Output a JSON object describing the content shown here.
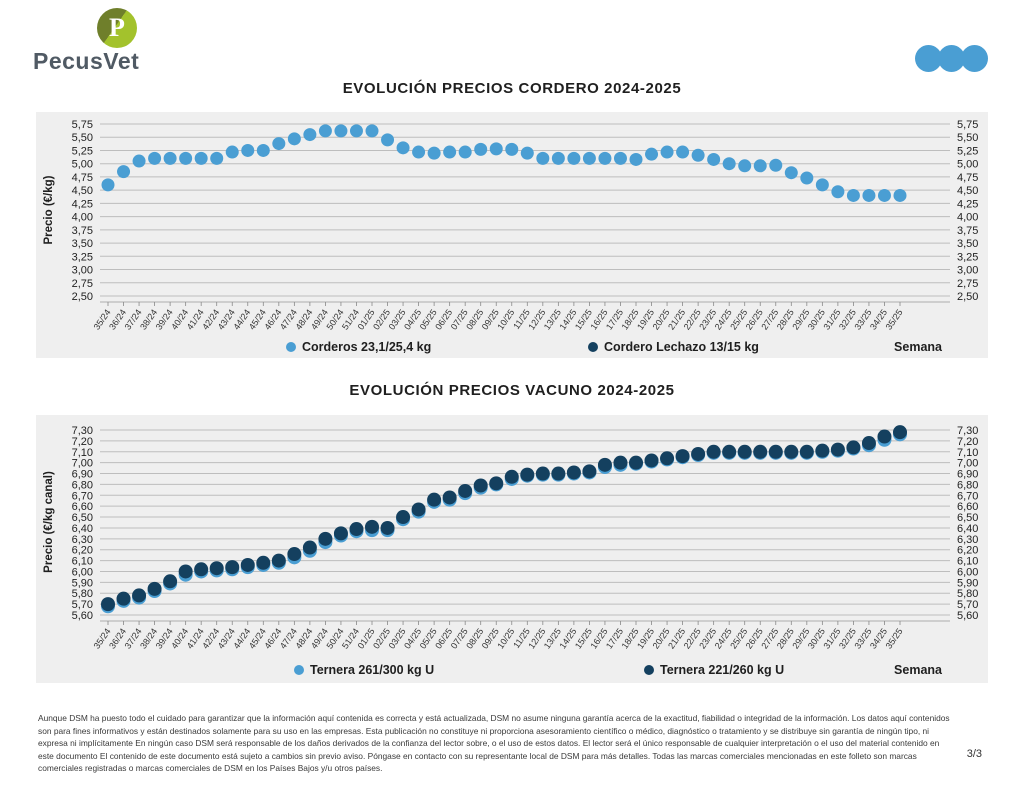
{
  "header": {
    "logo_text": "PecusVet",
    "logo_letter": "P",
    "dots_color": "#4A9ED3"
  },
  "chart_data": [
    {
      "type": "scatter",
      "title": "EVOLUCIÓN PRECIOS CORDERO 2024-2025",
      "ylabel": "Precio (€/kg)",
      "xlabel": "Semana",
      "ylim": [
        2.5,
        5.75
      ],
      "ystep": 0.25,
      "grid": true,
      "legend_position": "bottom",
      "categories": [
        "35/24",
        "36/24",
        "37/24",
        "38/24",
        "39/24",
        "40/24",
        "41/24",
        "42/24",
        "43/24",
        "44/24",
        "45/24",
        "46/24",
        "47/24",
        "48/24",
        "49/24",
        "50/24",
        "51/24",
        "01/25",
        "02/25",
        "03/25",
        "04/25",
        "05/25",
        "06/25",
        "07/25",
        "08/25",
        "09/25",
        "10/25",
        "11/25",
        "12/25",
        "13/25",
        "14/25",
        "15/25",
        "16/25",
        "17/25",
        "18/25",
        "19/25",
        "20/25",
        "21/25",
        "22/25",
        "23/25",
        "24/25",
        "25/25",
        "26/25",
        "27/25",
        "28/25",
        "29/25",
        "30/25",
        "31/25",
        "32/25",
        "33/25",
        "34/25",
        "35/25"
      ],
      "series": [
        {
          "name": "Corderos 23,1/25,4 kg",
          "color": "#4A9ED3",
          "values": [
            4.6,
            4.85,
            5.05,
            5.1,
            5.1,
            5.1,
            5.1,
            5.1,
            5.22,
            5.25,
            5.25,
            5.38,
            5.47,
            5.55,
            5.62,
            5.62,
            5.62,
            5.62,
            5.45,
            5.3,
            5.22,
            5.2,
            5.22,
            5.22,
            5.27,
            5.28,
            5.27,
            5.2,
            5.1,
            5.1,
            5.1,
            5.1,
            5.1,
            5.1,
            5.08,
            5.18,
            5.22,
            5.22,
            5.16,
            5.08,
            5.0,
            4.96,
            4.96,
            4.97,
            4.83,
            4.73,
            4.6,
            4.47,
            4.4,
            4.4,
            4.4,
            4.4
          ]
        },
        {
          "name": "Cordero Lechazo 13/15 kg",
          "color": "#14405F",
          "values": []
        }
      ]
    },
    {
      "type": "scatter",
      "title": "EVOLUCIÓN PRECIOS VACUNO 2024-2025",
      "ylabel": "Precio (€/kg canal)",
      "xlabel": "Semana",
      "ylim": [
        5.6,
        7.3
      ],
      "ystep": 0.1,
      "grid": true,
      "legend_position": "bottom",
      "categories": [
        "35/24",
        "36/24",
        "37/24",
        "38/24",
        "39/24",
        "40/24",
        "41/24",
        "42/24",
        "43/24",
        "44/24",
        "45/24",
        "46/24",
        "47/24",
        "48/24",
        "49/24",
        "50/24",
        "51/24",
        "01/25",
        "02/25",
        "03/25",
        "04/25",
        "05/25",
        "06/25",
        "07/25",
        "08/25",
        "09/25",
        "10/25",
        "11/25",
        "12/25",
        "13/25",
        "14/25",
        "15/25",
        "16/25",
        "17/25",
        "18/25",
        "19/25",
        "20/25",
        "21/25",
        "22/25",
        "23/25",
        "24/25",
        "25/25",
        "26/25",
        "27/25",
        "28/25",
        "29/25",
        "30/25",
        "31/25",
        "32/25",
        "33/25",
        "34/25",
        "35/25"
      ],
      "series": [
        {
          "name": "Ternera 261/300 kg U",
          "color": "#4A9ED3",
          "values": [
            5.68,
            5.73,
            5.76,
            5.82,
            5.89,
            5.97,
            6.0,
            6.01,
            6.02,
            6.04,
            6.06,
            6.08,
            6.13,
            6.19,
            6.27,
            6.33,
            6.37,
            6.38,
            6.38,
            6.48,
            6.55,
            6.64,
            6.66,
            6.72,
            6.77,
            6.8,
            6.85,
            6.88,
            6.89,
            6.89,
            6.9,
            6.91,
            6.96,
            6.98,
            6.99,
            7.01,
            7.03,
            7.05,
            7.07,
            7.09,
            7.09,
            7.09,
            7.09,
            7.09,
            7.09,
            7.09,
            7.1,
            7.11,
            7.13,
            7.16,
            7.21,
            7.26
          ]
        },
        {
          "name": "Ternera 221/260 kg U",
          "color": "#14405F",
          "values": [
            5.7,
            5.75,
            5.78,
            5.84,
            5.91,
            6.0,
            6.02,
            6.03,
            6.04,
            6.06,
            6.08,
            6.1,
            6.16,
            6.22,
            6.3,
            6.35,
            6.39,
            6.41,
            6.4,
            6.5,
            6.57,
            6.66,
            6.68,
            6.74,
            6.79,
            6.81,
            6.87,
            6.89,
            6.9,
            6.9,
            6.91,
            6.92,
            6.98,
            7.0,
            7.0,
            7.02,
            7.04,
            7.06,
            7.08,
            7.1,
            7.1,
            7.1,
            7.1,
            7.1,
            7.1,
            7.1,
            7.11,
            7.12,
            7.14,
            7.18,
            7.24,
            7.28
          ]
        }
      ]
    }
  ],
  "footer": {
    "disclaimer": "Aunque DSM ha puesto todo el cuidado para garantizar que la información aquí contenida es correcta y está actualizada, DSM no asume ninguna garantía acerca de la exactitud, fiabilidad o integridad de la información. Los datos aquí contenidos son para fines informativos y están destinados solamente para su uso en las empresas. Esta publicación no constituye ni proporciona asesoramiento científico o médico, diagnóstico o tratamiento y se distribuye sin garantía de ningún tipo, ni expresa ni implícitamente En ningún caso DSM será responsable de los daños derivados de la confianza del lector sobre, o el uso de estos datos. El lector será el único responsable de cualquier interpretación o el uso del material contenido en este documento El contenido de este documento está sujeto a cambios sin previo aviso. Póngase en contacto con su representante local de DSM para más detalles. Todas las marcas comerciales mencionadas en este folleto son marcas comerciales registradas o marcas comerciales de DSM en los Países Bajos y/u otros países.",
    "page": "3/3"
  },
  "colors": {
    "band_bg": "#EFEFEF",
    "gridline": "#BDBDBD",
    "axis_text": "#333333",
    "light_blue": "#4A9ED3",
    "navy": "#14405F"
  }
}
